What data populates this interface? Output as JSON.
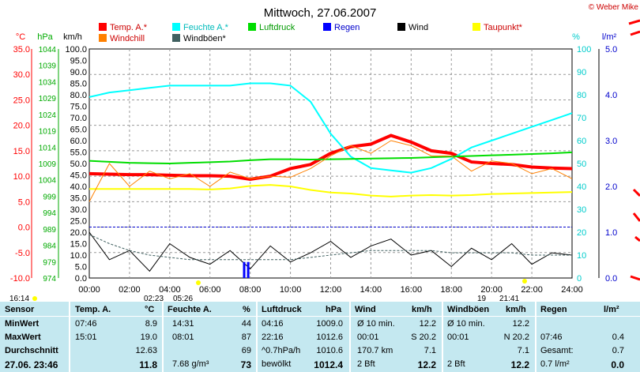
{
  "header": {
    "title": "Mittwoch, 27.06.2007",
    "credit": "© Weber Mike"
  },
  "legend": [
    {
      "label": "Temp. A.*",
      "color": "#ff0000"
    },
    {
      "label": "Feuchte A.*",
      "color": "#00ffff"
    },
    {
      "label": "Luftdruck",
      "color": "#00dd00"
    },
    {
      "label": "Regen",
      "color": "#0000ff"
    },
    {
      "label": "Wind",
      "color": "#000000"
    },
    {
      "label": "Taupunkt*",
      "color": "#ffff00"
    },
    {
      "label": "Windchill",
      "color": "#ff8000"
    },
    {
      "label": "Windböen*",
      "color": "#406060"
    }
  ],
  "axis_units": {
    "temp": "°C",
    "pressure": "hPa",
    "wind": "km/h",
    "humidity": "%",
    "rain": "l/m²"
  },
  "chart_data": {
    "type": "line",
    "title": "Mittwoch, 27.06.2007",
    "x_ticks": [
      "00:00",
      "02:00",
      "04:00",
      "06:00",
      "08:00",
      "10:00",
      "12:00",
      "14:00",
      "16:00",
      "18:00",
      "20:00",
      "22:00",
      "24:00"
    ],
    "temp_axis": {
      "unit": "°C",
      "range": [
        -10,
        35
      ],
      "ticks": [
        "35.0",
        "30.0",
        "25.0",
        "20.0",
        "15.0",
        "10.0",
        "5.0",
        "0.0",
        "-5.0",
        "-10.0"
      ]
    },
    "pressure_axis": {
      "unit": "hPa",
      "range": [
        974,
        1044
      ],
      "ticks": [
        "1044",
        "1039",
        "1034",
        "1029",
        "1024",
        "1019",
        "1014",
        "1009",
        "1004",
        "999",
        "994",
        "989",
        "984",
        "979",
        "974"
      ]
    },
    "wind_axis": {
      "unit": "km/h",
      "range": [
        0,
        100
      ],
      "ticks": [
        "100.0",
        "95.0",
        "90.0",
        "85.0",
        "80.0",
        "75.0",
        "70.0",
        "65.0",
        "60.0",
        "55.0",
        "50.0",
        "45.0",
        "40.0",
        "35.0",
        "30.0",
        "25.0",
        "20.0",
        "15.0",
        "10.0",
        "5.0",
        "0.0"
      ]
    },
    "humidity_axis": {
      "unit": "%",
      "range": [
        0,
        100
      ],
      "ticks": [
        "100",
        "90",
        "80",
        "70",
        "60",
        "50",
        "40",
        "30",
        "20",
        "10",
        "0"
      ]
    },
    "rain_axis": {
      "unit": "l/m²",
      "range": [
        0,
        5
      ],
      "ticks": [
        "5.0",
        "4.0",
        "3.0",
        "2.0",
        "1.0",
        "0.0"
      ]
    },
    "x": [
      0,
      1,
      2,
      3,
      4,
      5,
      6,
      7,
      8,
      9,
      10,
      11,
      12,
      13,
      14,
      15,
      16,
      17,
      18,
      19,
      20,
      21,
      22,
      23,
      24
    ],
    "series": [
      {
        "name": "Temp. A.*",
        "axis": "temp",
        "color": "#ff0000",
        "values": [
          10.5,
          10.4,
          10.3,
          10.3,
          10.2,
          10.1,
          10.1,
          10.0,
          9.4,
          10.0,
          11.5,
          12.3,
          14.5,
          15.8,
          16.3,
          18.0,
          16.7,
          15.0,
          14.5,
          12.8,
          12.5,
          12.3,
          11.8,
          11.6,
          11.5
        ]
      },
      {
        "name": "Feuchte A.*",
        "axis": "humidity",
        "color": "#00ffff",
        "values": [
          79,
          81,
          82,
          83,
          84,
          84,
          84,
          84,
          85,
          85,
          84,
          77,
          63,
          53,
          48,
          47,
          46,
          48,
          52,
          57,
          60,
          63,
          66,
          69,
          72
        ]
      },
      {
        "name": "Luftdruck",
        "axis": "pressure",
        "color": "#00dd00",
        "values": [
          1009.8,
          1009.5,
          1009.2,
          1009.1,
          1009.0,
          1009.2,
          1009.4,
          1009.6,
          1010.0,
          1010.3,
          1010.3,
          1010.2,
          1010.3,
          1010.4,
          1010.5,
          1010.6,
          1010.7,
          1010.9,
          1011.1,
          1011.3,
          1011.5,
          1011.7,
          1011.9,
          1012.1,
          1012.4
        ]
      },
      {
        "name": "Taupunkt*",
        "axis": "temp",
        "color": "#ffff00",
        "values": [
          7.5,
          7.5,
          7.5,
          7.5,
          7.5,
          7.5,
          7.4,
          7.6,
          8.1,
          8.3,
          8.0,
          7.3,
          6.8,
          6.6,
          6.2,
          6.0,
          6.2,
          6.3,
          6.2,
          6.3,
          6.5,
          6.6,
          6.7,
          6.8,
          6.9
        ]
      },
      {
        "name": "Windchill",
        "axis": "temp",
        "color": "#ff8000",
        "values": [
          5.0,
          12.5,
          8.0,
          11.0,
          9.5,
          10.5,
          8.0,
          10.8,
          9.5,
          10.0,
          9.8,
          11.5,
          14.0,
          16.0,
          14.5,
          17.0,
          16.0,
          14.0,
          14.0,
          11.0,
          13.0,
          12.5,
          10.5,
          11.5,
          9.5
        ]
      },
      {
        "name": "Wind",
        "axis": "wind",
        "color": "#000000",
        "values": [
          20,
          8,
          12,
          3,
          15,
          9,
          6,
          12,
          4,
          14,
          7,
          11,
          16,
          9,
          14,
          17,
          10,
          12,
          5,
          13,
          8,
          15,
          6,
          11,
          10
        ]
      },
      {
        "name": "Windböen*",
        "axis": "wind",
        "color": "#406060",
        "values": [
          19,
          15,
          12,
          10,
          9,
          8,
          8,
          8,
          8,
          8,
          8,
          9,
          10,
          11,
          12,
          12,
          12,
          12,
          11,
          11,
          11,
          11,
          10,
          10,
          10
        ]
      },
      {
        "name": "Regen",
        "axis": "rain",
        "color": "#0000ff",
        "values": [
          0,
          0,
          0,
          0,
          0,
          0,
          0,
          0.2,
          0,
          0,
          0,
          0,
          0,
          0,
          0,
          0,
          0,
          0,
          0,
          0,
          0,
          0,
          0,
          0,
          0
        ]
      }
    ],
    "rain_bars": [
      {
        "x": 7.7,
        "value": 0.35
      },
      {
        "x": 7.9,
        "value": 0.35
      }
    ],
    "reference_line": {
      "axis": "temp",
      "value": 0.0,
      "color": "#0000cc"
    },
    "grid": true,
    "below_axis_labels": [
      "16:14",
      "02:23",
      "05:26",
      "19",
      "21:41"
    ]
  },
  "table": {
    "headers": {
      "sensor": "Sensor",
      "temp": "Temp. A.",
      "temp_unit": "°C",
      "hum": "Feuchte A.",
      "hum_unit": "%",
      "press": "Luftdruck",
      "press_unit": "hPa",
      "wind": "Wind",
      "wind_unit": "km/h",
      "gust": "Windböen",
      "gust_unit": "km/h",
      "rain": "Regen",
      "rain_unit": "l/m²"
    },
    "rows": [
      {
        "label": "MinWert",
        "temp_time": "07:46",
        "temp_val": "8.9",
        "hum_time": "14:31",
        "hum_val": "44",
        "press_time": "04:16",
        "press_val": "1009.0",
        "wind_desc": "Ø 10 min.",
        "wind_val": "12.2",
        "gust_desc": "Ø 10 min.",
        "gust_val": "12.2",
        "rain_desc": "",
        "rain_val": ""
      },
      {
        "label": "MaxWert",
        "temp_time": "15:01",
        "temp_val": "19.0",
        "hum_time": "08:01",
        "hum_val": "87",
        "press_time": "22:16",
        "press_val": "1012.6",
        "wind_desc": "00:01",
        "wind_val": "S 20.2",
        "gust_desc": "00:01",
        "gust_val": "N 20.2",
        "rain_desc": "07:46",
        "rain_val": "0.4"
      },
      {
        "label": "Durchschnitt",
        "temp_time": "",
        "temp_val": "12.63",
        "hum_time": "",
        "hum_val": "69",
        "press_time": "^0.7hPa/h",
        "press_val": "1010.6",
        "wind_desc": "170.7 km",
        "wind_val": "7.1",
        "gust_desc": "",
        "gust_val": "7.1",
        "rain_desc": "Gesamt:",
        "rain_val": "0.7"
      },
      {
        "label": "27.06. 23:46",
        "temp_time": "",
        "temp_val": "11.8",
        "hum_time": "7.68 g/m³",
        "hum_val": "73",
        "press_time": "bewölkt",
        "press_val": "1012.4",
        "wind_desc": "2 Bft",
        "wind_val": "12.2",
        "gust_desc": "2 Bft",
        "gust_val": "12.2",
        "rain_desc": "0.7 l/m²",
        "rain_val": "0.0"
      }
    ]
  }
}
